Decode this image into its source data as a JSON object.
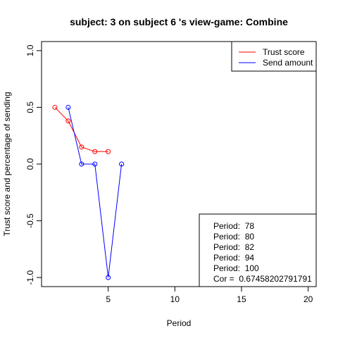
{
  "chart_data": {
    "type": "line",
    "title": "subject:  3  on subject  6 's view-game:  Combine",
    "xlabel": "Period",
    "ylabel": "Trust score and percentage of sending",
    "xlim": [
      0,
      20.6
    ],
    "ylim": [
      -1.08,
      1.08
    ],
    "x_ticks": [
      5,
      10,
      15,
      20
    ],
    "y_ticks": [
      -1.0,
      -0.5,
      0.0,
      0.5,
      1.0
    ],
    "x_tick_labels": [
      "5",
      "10",
      "15",
      "20"
    ],
    "y_tick_labels": [
      "-1.0",
      "-0.5",
      "0.0",
      "0.5",
      "1.0"
    ],
    "grid": false,
    "legend_position": "top-right",
    "series": [
      {
        "name": "Trust score",
        "color": "#ff0000",
        "x": [
          1,
          2,
          3,
          4,
          5
        ],
        "y": [
          0.5,
          0.38,
          0.15,
          0.11,
          0.11
        ]
      },
      {
        "name": "Send amount",
        "color": "#0000ff",
        "x": [
          2,
          3,
          4,
          5,
          6
        ],
        "y": [
          0.5,
          0.0,
          0.0,
          -1.0,
          0.0
        ]
      }
    ],
    "annotation_lines": [
      "Period:  78",
      "Period:  80",
      "Period:  82",
      "Period:  94",
      "Period:  100",
      "Cor =  0.67458202791791"
    ]
  }
}
